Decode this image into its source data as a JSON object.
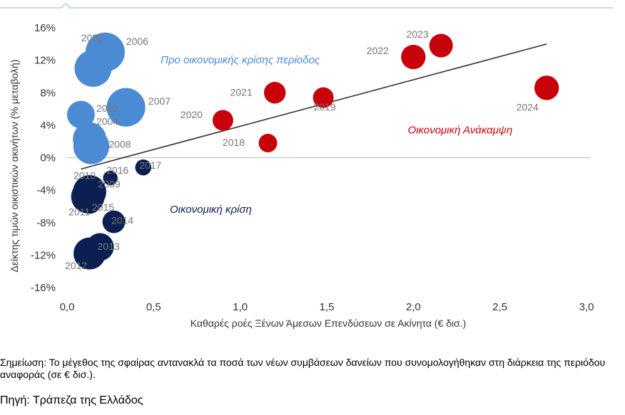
{
  "chart_data": {
    "type": "scatter",
    "xlabel": "Καθαρές ροές Ξένων Άμεσων Επενδύσεων σε Ακίνητα (€ δισ.)",
    "ylabel": "Δείκτης τιμών οικιστικών ακινήτων (% μεταβολή)",
    "xlim": [
      0.0,
      3.0
    ],
    "ylim": [
      -16,
      16
    ],
    "x_ticks": [
      "0,0",
      "0,5",
      "1,0",
      "1,5",
      "2,0",
      "2,5",
      "3,0"
    ],
    "y_ticks": [
      "16%",
      "12%",
      "8%",
      "4%",
      "0%",
      "-4%",
      "-8%",
      "-12%",
      "-16%"
    ],
    "grid": false,
    "legend": "none",
    "trendline": {
      "x": [
        0.08,
        2.77
      ],
      "y": [
        -1.4,
        14.0
      ]
    },
    "colors": {
      "pre_crisis": "#4a8bd4",
      "crisis": "#0b1f52",
      "recovery": "#c8000a",
      "trend": "#333333"
    },
    "annotations": [
      {
        "text": "Προ οικονομικής κρίσης περίοδος",
        "group": "pre_crisis",
        "x": 1.0,
        "y": 11.6
      },
      {
        "text": "Οικονομική Ανάκαμψη",
        "group": "recovery",
        "x": 2.27,
        "y": 3.0
      },
      {
        "text": "Οικονομική κρίση",
        "group": "crisis",
        "x": 0.83,
        "y": -6.8
      }
    ],
    "points": [
      {
        "label": "2005",
        "x": 0.15,
        "y": 11.0,
        "size": 3.2,
        "group": "pre_crisis",
        "lx": -1,
        "ly": -38
      },
      {
        "label": "2006",
        "x": 0.22,
        "y": 13.0,
        "size": 3.6,
        "group": "pre_crisis",
        "lx": 45,
        "ly": -10
      },
      {
        "label": "2007",
        "x": 0.34,
        "y": 6.2,
        "size": 3.5,
        "group": "pre_crisis",
        "lx": 47,
        "ly": -4
      },
      {
        "label": "2003",
        "x": 0.08,
        "y": 5.3,
        "size": 1.8,
        "group": "pre_crisis",
        "lx": 37,
        "ly": -4
      },
      {
        "label": "2004",
        "x": 0.13,
        "y": 2.3,
        "size": 2.6,
        "group": "pre_crisis",
        "lx": 25,
        "ly": -20
      },
      {
        "label": "2008",
        "x": 0.14,
        "y": 1.4,
        "size": 3.0,
        "group": "pre_crisis",
        "lx": 40,
        "ly": 2
      },
      {
        "label": "2016",
        "x": 0.25,
        "y": -2.5,
        "size": 0.5,
        "group": "crisis",
        "lx": 10,
        "ly": -6
      },
      {
        "label": "2017",
        "x": 0.44,
        "y": -1.2,
        "size": 0.6,
        "group": "crisis",
        "lx": 10,
        "ly": 2
      },
      {
        "label": "2010",
        "x": 0.13,
        "y": -4.2,
        "size": 2.6,
        "group": "crisis",
        "lx": -7,
        "ly": -18
      },
      {
        "label": "2009",
        "x": 0.12,
        "y": -4.4,
        "size": 1.4,
        "group": "crisis",
        "lx": 30,
        "ly": -8
      },
      {
        "label": "2011",
        "x": 0.12,
        "y": -4.8,
        "size": 2.6,
        "group": "crisis",
        "lx": -12,
        "ly": 26
      },
      {
        "label": "2015",
        "x": 0.13,
        "y": -5.4,
        "size": 1.4,
        "group": "crisis",
        "lx": 19,
        "ly": 13
      },
      {
        "label": "2014",
        "x": 0.27,
        "y": -7.9,
        "size": 1.2,
        "group": "crisis",
        "lx": 12,
        "ly": 3
      },
      {
        "label": "2013",
        "x": 0.19,
        "y": -11.0,
        "size": 1.8,
        "group": "crisis",
        "lx": 12,
        "ly": 4
      },
      {
        "label": "2012",
        "x": 0.13,
        "y": -11.8,
        "size": 2.4,
        "group": "crisis",
        "lx": -19,
        "ly": 22
      },
      {
        "label": "2018",
        "x": 1.16,
        "y": 1.8,
        "size": 0.8,
        "group": "recovery",
        "lx": -48,
        "ly": 4
      },
      {
        "label": "2019",
        "x": 1.48,
        "y": 7.4,
        "size": 1.0,
        "group": "recovery",
        "lx": 2,
        "ly": 18
      },
      {
        "label": "2020",
        "x": 0.9,
        "y": 4.6,
        "size": 1.0,
        "group": "recovery",
        "lx": -44,
        "ly": -3
      },
      {
        "label": "2021",
        "x": 1.2,
        "y": 8.0,
        "size": 1.1,
        "group": "recovery",
        "lx": -47,
        "ly": 4
      },
      {
        "label": "2022",
        "x": 2.0,
        "y": 12.4,
        "size": 1.4,
        "group": "recovery",
        "lx": -50,
        "ly": -4
      },
      {
        "label": "2023",
        "x": 2.16,
        "y": 13.8,
        "size": 1.3,
        "group": "recovery",
        "lx": -33,
        "ly": -11
      },
      {
        "label": "2024",
        "x": 2.77,
        "y": 8.6,
        "size": 1.4,
        "group": "recovery",
        "lx": -27,
        "ly": 32
      }
    ]
  },
  "footer": {
    "note": "Σημείωση: Το μέγεθος της σφαίρας αντανακλά τα ποσά των νέων συμβάσεων δανείων που συνομολογήθηκαν στη διάρκεια της περιόδου αναφοράς (σε € δισ.).",
    "source": "Πηγή: Τράπεζα της Ελλάδος"
  }
}
